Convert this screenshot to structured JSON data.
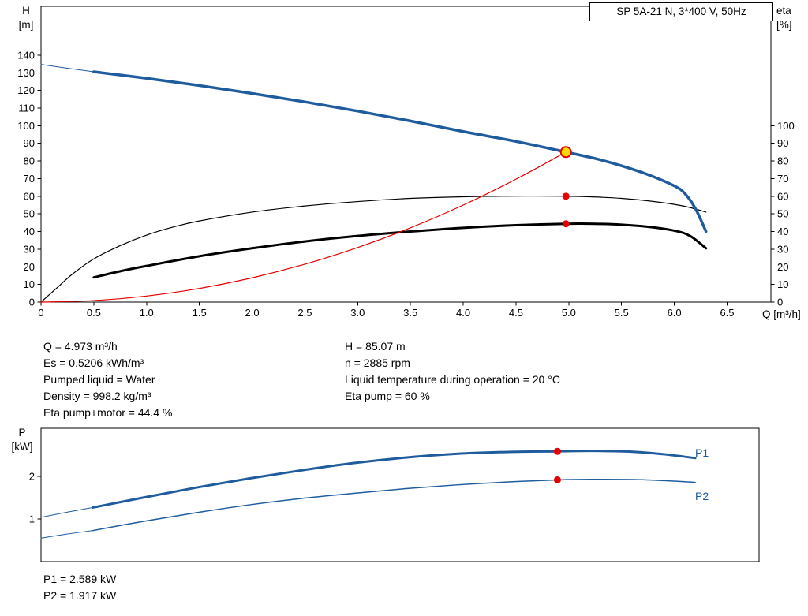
{
  "colors": {
    "blue": "#1f5c9e",
    "red": "#e60000",
    "black": "#000000",
    "yellow": "#ffd800",
    "axis": "#000000"
  },
  "header": {
    "title_box": "SP 5A-21 N, 3*400 V, 50Hz"
  },
  "top_chart_labels": {
    "y_left_1": "H",
    "y_left_2": "[m]",
    "y_right_1": "eta",
    "y_right_2": "[%]",
    "x_label": "Q [m³/h]"
  },
  "info": {
    "left": [
      "Q = 4.973 m³/h",
      "Es = 0.5206 kWh/m³",
      "Pumped liquid = Water",
      "Density = 998.2 kg/m³",
      "Eta pump+motor = 44.4 %"
    ],
    "right": [
      "H = 85.07 m",
      "n = 2885 rpm",
      "Liquid temperature during operation = 20 °C",
      "Eta pump = 60 %"
    ]
  },
  "bottom_chart_labels": {
    "y_label_1": "P",
    "y_label_2": "[kW]",
    "p1": "P1",
    "p2": "P2"
  },
  "results": [
    "P1 = 2.589 kW",
    "P2 = 1.917 kW"
  ],
  "chart_data": [
    {
      "type": "line",
      "title": "SP 5A-21 N, 3*400 V, 50Hz",
      "xlabel": "Q [m³/h]",
      "ylabel_left": "H [m]",
      "ylabel_right": "eta [%]",
      "x_range": [
        0,
        6.915
      ],
      "h_range": [
        0,
        167.7
      ],
      "grid": false,
      "h_ticks": [
        0,
        10,
        20,
        30,
        40,
        50,
        60,
        70,
        80,
        90,
        100,
        110,
        120,
        130,
        140
      ],
      "eta_ticks": [
        0,
        10,
        20,
        30,
        40,
        50,
        60,
        70,
        80,
        90,
        100
      ],
      "x_ticks": [
        {
          "v": 0,
          "t": "0"
        },
        {
          "v": 0.5,
          "t": "0.5"
        },
        {
          "v": 1,
          "t": "1.0"
        },
        {
          "v": 1.5,
          "t": "1.5"
        },
        {
          "v": 2,
          "t": "2.0"
        },
        {
          "v": 2.5,
          "t": "2.5"
        },
        {
          "v": 3,
          "t": "3.0"
        },
        {
          "v": 3.5,
          "t": "3.5"
        },
        {
          "v": 4,
          "t": "4.0"
        },
        {
          "v": 4.5,
          "t": "4.5"
        },
        {
          "v": 5,
          "t": "5.0"
        },
        {
          "v": 5.5,
          "t": "5.5"
        },
        {
          "v": 6,
          "t": "6.0"
        },
        {
          "v": 6.5,
          "t": "6.5"
        }
      ],
      "series": [
        {
          "name": "eta-pump-curve",
          "axis": "eta",
          "color": "black",
          "width": 1.2,
          "points": [
            [
              0,
              0
            ],
            [
              0.15,
              8
            ],
            [
              0.3,
              16
            ],
            [
              0.5,
              24.5
            ],
            [
              0.75,
              32
            ],
            [
              1,
              38
            ],
            [
              1.25,
              42.5
            ],
            [
              1.5,
              46
            ],
            [
              2,
              51
            ],
            [
              2.5,
              54.5
            ],
            [
              3,
              57
            ],
            [
              3.5,
              58.8
            ],
            [
              4,
              59.7
            ],
            [
              4.5,
              60.1
            ],
            [
              4.973,
              60
            ],
            [
              5.25,
              59.6
            ],
            [
              5.5,
              58.8
            ],
            [
              5.75,
              57.4
            ],
            [
              6,
              55.4
            ],
            [
              6.15,
              53.6
            ],
            [
              6.3,
              51
            ]
          ]
        },
        {
          "name": "eta-pump-motor-curve",
          "axis": "eta",
          "color": "black",
          "width": 3,
          "points": [
            [
              0.5,
              14
            ],
            [
              0.75,
              17.5
            ],
            [
              1,
              20.5
            ],
            [
              1.5,
              26
            ],
            [
              2,
              30.5
            ],
            [
              2.5,
              34.4
            ],
            [
              3,
              37.5
            ],
            [
              3.5,
              40
            ],
            [
              4,
              42.1
            ],
            [
              4.5,
              43.6
            ],
            [
              4.973,
              44.4
            ],
            [
              5.25,
              44.4
            ],
            [
              5.5,
              43.9
            ],
            [
              5.75,
              42.7
            ],
            [
              6,
              40.5
            ],
            [
              6.15,
              37.5
            ],
            [
              6.3,
              30.5
            ]
          ]
        },
        {
          "name": "head-curve-extrapolated",
          "axis": "H",
          "color": "blue",
          "width": 1,
          "points": [
            [
              0,
              134.8
            ],
            [
              0.25,
              132.6
            ],
            [
              0.5,
              130.6
            ]
          ]
        },
        {
          "name": "head-curve",
          "axis": "H",
          "color": "blue",
          "width": 3.5,
          "points": [
            [
              0.5,
              130.6
            ],
            [
              1,
              126.9
            ],
            [
              1.5,
              122.8
            ],
            [
              2,
              118.3
            ],
            [
              2.5,
              113.5
            ],
            [
              3,
              108.3
            ],
            [
              3.5,
              102.7
            ],
            [
              4,
              96.7
            ],
            [
              4.5,
              91.1
            ],
            [
              4.973,
              85.07
            ],
            [
              5.25,
              81.4
            ],
            [
              5.5,
              77.3
            ],
            [
              5.75,
              72.3
            ],
            [
              6,
              65.9
            ],
            [
              6.1,
              61.5
            ],
            [
              6.2,
              53
            ],
            [
              6.3,
              40
            ]
          ]
        },
        {
          "name": "system-curve",
          "axis": "H",
          "color": "red",
          "width": 1.2,
          "points": [
            [
              0,
              0
            ],
            [
              0.5,
              0.86
            ],
            [
              1,
              3.44
            ],
            [
              1.5,
              7.74
            ],
            [
              2,
              13.76
            ],
            [
              2.5,
              21.5
            ],
            [
              3,
              30.96
            ],
            [
              3.5,
              42.1
            ],
            [
              4,
              55
            ],
            [
              4.5,
              69.7
            ],
            [
              4.973,
              85.07
            ]
          ]
        }
      ],
      "markers": [
        {
          "name": "eta-pump-point",
          "x": 4.973,
          "y": 60,
          "style": "dot"
        },
        {
          "name": "eta-pump-motor-point",
          "x": 4.973,
          "y": 44.4,
          "style": "dot"
        },
        {
          "name": "operating-point",
          "x": 4.973,
          "y": 85.07,
          "style": "op"
        }
      ]
    },
    {
      "type": "line",
      "ylabel": "P [kW]",
      "x_range": [
        0,
        6.915
      ],
      "p_range": [
        0,
        3.13
      ],
      "grid": false,
      "p_ticks": [
        1,
        2
      ],
      "series": [
        {
          "name": "p1-curve-extrapolated",
          "color": "blue",
          "width": 1,
          "points": [
            [
              0,
              1.04
            ],
            [
              0.25,
              1.16
            ],
            [
              0.5,
              1.27
            ]
          ]
        },
        {
          "name": "p1-curve",
          "color": "blue",
          "width": 3,
          "points": [
            [
              0.5,
              1.27
            ],
            [
              1,
              1.51
            ],
            [
              1.5,
              1.74
            ],
            [
              2,
              1.95
            ],
            [
              2.5,
              2.14
            ],
            [
              3,
              2.31
            ],
            [
              3.5,
              2.44
            ],
            [
              4,
              2.53
            ],
            [
              4.5,
              2.575
            ],
            [
              4.973,
              2.589
            ],
            [
              5.3,
              2.6
            ],
            [
              5.7,
              2.58
            ],
            [
              6,
              2.52
            ],
            [
              6.3,
              2.43
            ]
          ]
        },
        {
          "name": "p2-curve-extrapolated",
          "color": "blue",
          "width": 1,
          "points": [
            [
              0,
              0.55
            ],
            [
              0.25,
              0.645
            ],
            [
              0.5,
              0.73
            ]
          ]
        },
        {
          "name": "p2-curve",
          "color": "blue",
          "width": 1.5,
          "points": [
            [
              0.5,
              0.73
            ],
            [
              1,
              0.95
            ],
            [
              1.5,
              1.15
            ],
            [
              2,
              1.33
            ],
            [
              2.5,
              1.48
            ],
            [
              3,
              1.6
            ],
            [
              3.5,
              1.71
            ],
            [
              4,
              1.8
            ],
            [
              4.5,
              1.87
            ],
            [
              4.973,
              1.917
            ],
            [
              5.3,
              1.93
            ],
            [
              5.7,
              1.925
            ],
            [
              6,
              1.9
            ],
            [
              6.3,
              1.86
            ]
          ]
        }
      ],
      "markers": [
        {
          "name": "p1-point",
          "x": 4.973,
          "y": 2.589,
          "style": "dot"
        },
        {
          "name": "p2-point",
          "x": 4.973,
          "y": 1.917,
          "style": "dot"
        }
      ],
      "curve_labels": [
        "P1",
        "P2"
      ]
    }
  ]
}
